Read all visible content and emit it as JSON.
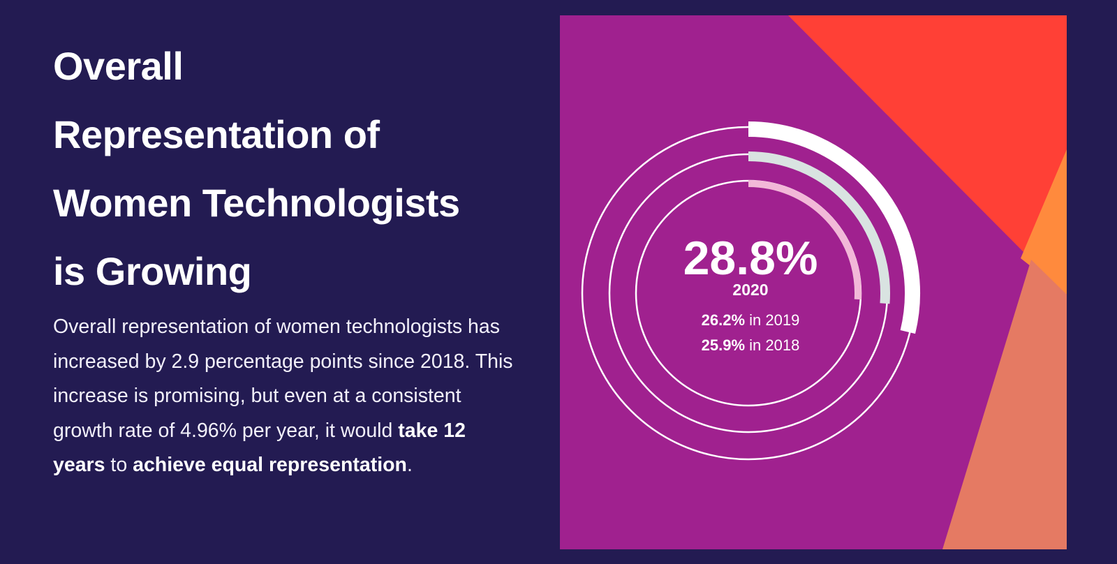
{
  "heading": {
    "lines": [
      "Overall",
      "Representation of",
      "Women Technologists",
      "is Growing"
    ]
  },
  "description": {
    "part1": "Overall representation of women technologists has increased by 2.9 percentage points since 2018. This increase is promising, but even at a consistent growth rate of 4.96% per year, it would ",
    "bold1": "take 12 years",
    "part2": " to ",
    "bold2": "achieve equal representation",
    "part3": "."
  },
  "colors": {
    "background": "#231b52",
    "panel_purple": "#a0218f",
    "accent_red": "#ff4036",
    "accent_orange": "#ff8a3d",
    "accent_salmon": "#e57a63",
    "ring_2020": "#ffffff",
    "ring_2019": "#d9e3e1",
    "ring_2018": "#f2b8d8"
  },
  "chart_data": {
    "type": "radial-bar",
    "max_value": 100,
    "main": {
      "value_label": "28.8%",
      "year_label": "2020"
    },
    "others": [
      {
        "value_label": "26.2%",
        "suffix": " in 2019"
      },
      {
        "value_label": "25.9%",
        "suffix": " in 2018"
      }
    ],
    "series": [
      {
        "year": "2020",
        "value": 28.8,
        "color": "#ffffff"
      },
      {
        "year": "2019",
        "value": 26.2,
        "color": "#d9e3e1"
      },
      {
        "year": "2018",
        "value": 25.9,
        "color": "#f2b8d8"
      }
    ]
  }
}
